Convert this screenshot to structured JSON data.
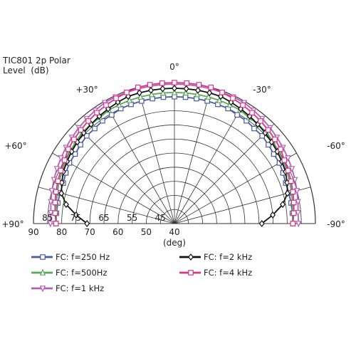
{
  "title_line1": "TIC801 2p Polar",
  "title_line2": "Level  (dB)",
  "chart_data": {
    "type": "polar",
    "angle_labels": [
      "0°",
      "+30°",
      "-30°",
      "+60°",
      "-60°",
      "+90°",
      "-90°"
    ],
    "radial_labels_on_axis": [
      "90",
      "80",
      "70",
      "60",
      "50",
      "40"
    ],
    "radial_labels_inner": [
      "85",
      "75",
      "65",
      "55",
      "45"
    ],
    "radial_range_db": [
      40,
      90
    ],
    "radial_unit": "(deg)",
    "series": [
      {
        "name": "FC: f=250 Hz",
        "color": "#4a5aa0",
        "marker": "square",
        "angles": [
          -90,
          -85,
          -80,
          -75,
          -70,
          -65,
          -60,
          -55,
          -50,
          -45,
          -40,
          -35,
          -30,
          -25,
          -20,
          -15,
          -10,
          -5,
          0,
          5,
          10,
          15,
          20,
          25,
          30,
          35,
          40,
          45,
          50,
          55,
          60,
          65,
          70,
          75,
          80,
          85,
          90
        ],
        "values": [
          82,
          82,
          82,
          82,
          82,
          82.5,
          83,
          83,
          83.5,
          84,
          84,
          84.5,
          84.5,
          85,
          85,
          85,
          85,
          85,
          85,
          85,
          85,
          85,
          85,
          85,
          84.5,
          84.5,
          84,
          84,
          83.5,
          83,
          83,
          82.5,
          82,
          82,
          82,
          82,
          82
        ]
      },
      {
        "name": "FC: f=500Hz",
        "color": "#5aa85a",
        "marker": "triangle-up",
        "angles": [
          -90,
          -85,
          -80,
          -75,
          -70,
          -65,
          -60,
          -55,
          -50,
          -45,
          -40,
          -35,
          -30,
          -25,
          -20,
          -15,
          -10,
          -5,
          0,
          5,
          10,
          15,
          20,
          25,
          30,
          35,
          40,
          45,
          50,
          55,
          60,
          65,
          70,
          75,
          80,
          85,
          90
        ],
        "values": [
          82,
          82,
          82.5,
          83,
          83.5,
          84,
          84.5,
          85,
          85.5,
          86,
          86,
          86,
          86.5,
          86.5,
          86.5,
          86.5,
          86.5,
          86.5,
          86.5,
          86.5,
          86.5,
          86.5,
          86.5,
          86.5,
          86.5,
          86,
          86,
          86,
          85.5,
          85,
          84.5,
          84,
          83.5,
          83,
          82.5,
          82,
          82
        ]
      },
      {
        "name": "FC: f=1 kHz",
        "color": "#b060b8",
        "marker": "triangle-down",
        "angles": [
          -90,
          -85,
          -80,
          -75,
          -70,
          -65,
          -60,
          -55,
          -50,
          -45,
          -40,
          -35,
          -30,
          -25,
          -20,
          -15,
          -10,
          -5,
          0,
          5,
          10,
          15,
          20,
          25,
          30,
          35,
          40,
          45,
          50,
          55,
          60,
          65,
          70,
          75,
          80,
          85,
          90
        ],
        "values": [
          84,
          84,
          84.5,
          85,
          85.5,
          86,
          86.5,
          87,
          87.5,
          88,
          88.5,
          89,
          89.5,
          89.5,
          89.5,
          89.5,
          89.5,
          89.5,
          89.5,
          89.5,
          89.5,
          89.5,
          89.5,
          89.5,
          89.5,
          89,
          88.5,
          88,
          87.5,
          87,
          86.5,
          86,
          85.5,
          85,
          84.5,
          84,
          84
        ]
      },
      {
        "name": "FC: f=2 kHz",
        "color": "#111111",
        "marker": "diamond",
        "angles": [
          -90,
          -85,
          -80,
          -75,
          -70,
          -65,
          -60,
          -55,
          -50,
          -45,
          -40,
          -35,
          -30,
          -25,
          -20,
          -15,
          -10,
          -5,
          0,
          5,
          10,
          15,
          20,
          25,
          30,
          35,
          40,
          45,
          50,
          55,
          60,
          65,
          70,
          75,
          80,
          85,
          90
        ],
        "values": [
          71,
          75,
          79,
          81.5,
          82.5,
          83.5,
          84,
          84.5,
          85,
          85.5,
          86,
          86.5,
          87,
          87.5,
          88,
          88,
          88,
          88,
          88,
          88,
          88,
          88,
          88,
          87.5,
          87,
          86.5,
          86,
          85.5,
          85,
          84.5,
          84,
          83.5,
          82.5,
          81.5,
          79,
          75,
          71
        ]
      },
      {
        "name": "FC: f=4 kHz",
        "color": "#d8358a",
        "marker": "square",
        "angles": [
          -90,
          -85,
          -80,
          -75,
          -70,
          -65,
          -60,
          -55,
          -50,
          -45,
          -40,
          -35,
          -30,
          -25,
          -20,
          -15,
          -10,
          -5,
          0,
          5,
          10,
          15,
          20,
          25,
          30,
          35,
          40,
          45,
          50,
          55,
          60,
          65,
          70,
          75,
          80,
          85,
          90
        ],
        "values": [
          82,
          82.5,
          83,
          83.5,
          84,
          84.5,
          85,
          86,
          86.5,
          87,
          87.5,
          88,
          88.5,
          89,
          89.5,
          90,
          90,
          90,
          90,
          90,
          90,
          90,
          89.5,
          89,
          88.5,
          88,
          87.5,
          87,
          86.5,
          86,
          85,
          84.5,
          84,
          83.5,
          83,
          82.5,
          82
        ]
      }
    ],
    "legend_placement": "bottom"
  }
}
